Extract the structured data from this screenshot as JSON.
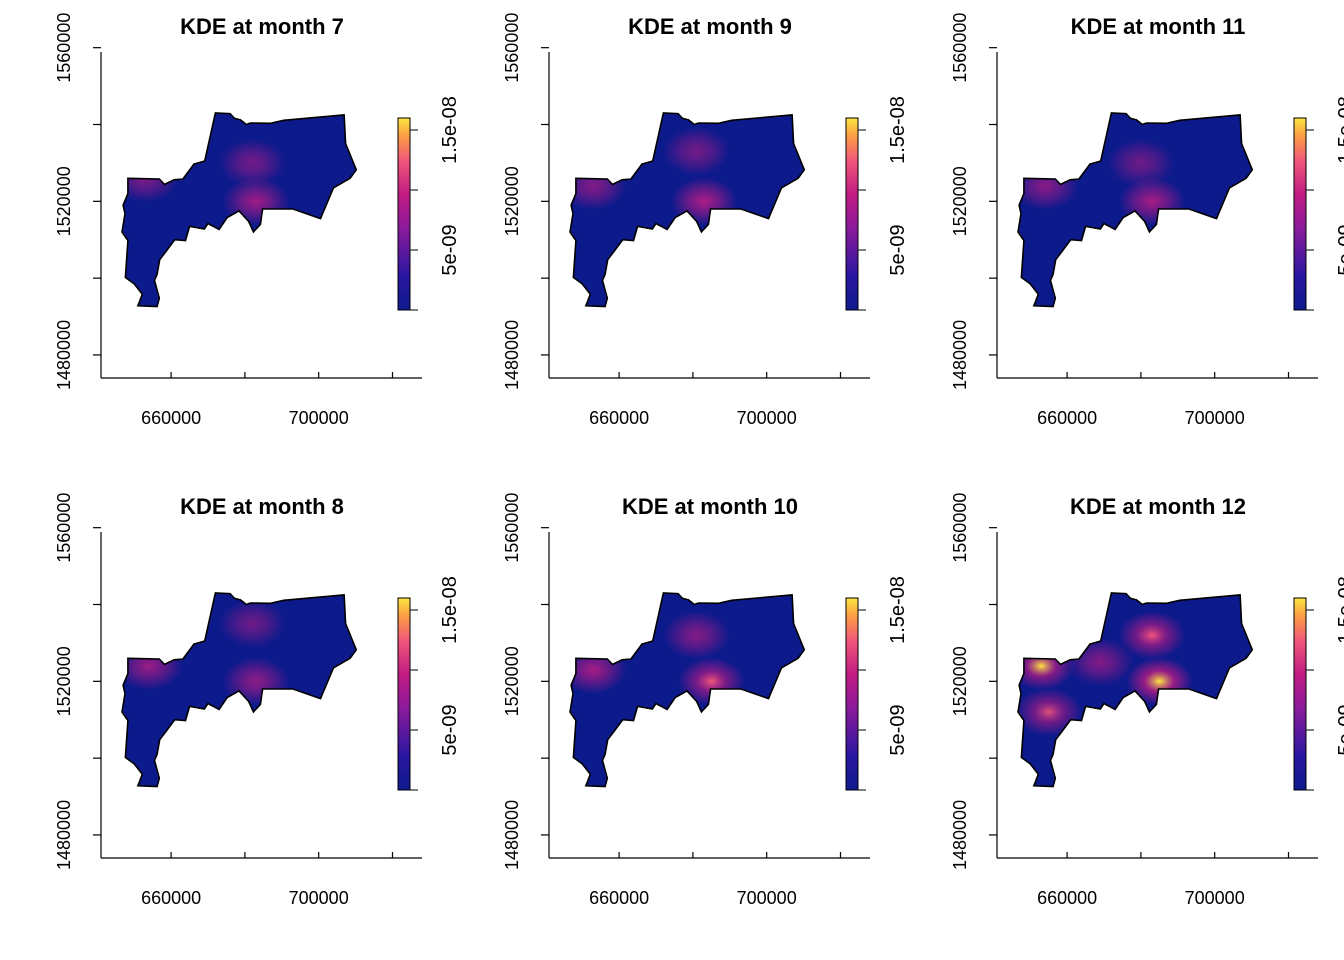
{
  "figure": {
    "description_none": "",
    "x_ticks": [
      "660000",
      "700000"
    ],
    "y_ticks": [
      "1480000",
      "1520000",
      "1560000"
    ],
    "colorbar_ticks": [
      "5e-09",
      "1.5e-08"
    ]
  },
  "colors": {
    "low": "#0d1a8c",
    "mid": "#c21c84",
    "high": "#fde53e",
    "axis": "#000000",
    "background": "#ffffff"
  },
  "chart_data": [
    {
      "type": "heatmap",
      "title": "KDE at month 7",
      "xlabel": "",
      "ylabel": "",
      "xlim": [
        641000,
        728000
      ],
      "ylim": [
        1474000,
        1562000
      ],
      "x_ticks": [
        660000,
        680000,
        700000,
        720000
      ],
      "x_tick_labels": [
        "660000",
        "700000"
      ],
      "y_ticks": [
        1480000,
        1500000,
        1520000,
        1540000,
        1560000
      ],
      "y_tick_labels": [
        "1480000",
        "1520000",
        "1560000"
      ],
      "colorbar": {
        "range": [
          0,
          1.6e-08
        ],
        "ticks": [
          0,
          5e-09,
          1e-08,
          1.5e-08
        ],
        "tick_labels": [
          "5e-09",
          "1.5e-08"
        ]
      },
      "hotspots": [
        {
          "x": 683000,
          "y": 1520000,
          "density": 7.5e-09
        },
        {
          "x": 653000,
          "y": 1526000,
          "density": 4.5e-09
        },
        {
          "x": 682000,
          "y": 1530000,
          "density": 3.5e-09
        }
      ]
    },
    {
      "type": "heatmap",
      "title": "KDE at month 9",
      "xlabel": "",
      "ylabel": "",
      "xlim": [
        641000,
        728000
      ],
      "ylim": [
        1474000,
        1562000
      ],
      "x_ticks": [
        660000,
        680000,
        700000,
        720000
      ],
      "x_tick_labels": [
        "660000",
        "700000"
      ],
      "y_ticks": [
        1480000,
        1500000,
        1520000,
        1540000,
        1560000
      ],
      "y_tick_labels": [
        "1480000",
        "1520000",
        "1560000"
      ],
      "colorbar": {
        "range": [
          0,
          1.6e-08
        ],
        "ticks": [
          0,
          5e-09,
          1e-08,
          1.5e-08
        ],
        "tick_labels": [
          "5e-09",
          "1.5e-08"
        ]
      },
      "hotspots": [
        {
          "x": 683000,
          "y": 1520000,
          "density": 8.5e-09
        },
        {
          "x": 653000,
          "y": 1524000,
          "density": 5e-09
        },
        {
          "x": 681000,
          "y": 1533000,
          "density": 3.5e-09
        }
      ]
    },
    {
      "type": "heatmap",
      "title": "KDE at month 11",
      "xlabel": "",
      "ylabel": "",
      "xlim": [
        641000,
        728000
      ],
      "ylim": [
        1474000,
        1562000
      ],
      "x_ticks": [
        660000,
        680000,
        700000,
        720000
      ],
      "x_tick_labels": [
        "660000",
        "700000"
      ],
      "y_ticks": [
        1480000,
        1500000,
        1520000,
        1540000,
        1560000
      ],
      "y_tick_labels": [
        "1480000",
        "1520000",
        "1560000"
      ],
      "colorbar": {
        "range": [
          0,
          1.6e-08
        ],
        "ticks": [
          0,
          5e-09,
          1e-08,
          1.5e-08
        ],
        "tick_labels": [
          "5e-09",
          "1.5e-08"
        ]
      },
      "hotspots": [
        {
          "x": 683000,
          "y": 1520000,
          "density": 8e-09
        },
        {
          "x": 654000,
          "y": 1524000,
          "density": 5.5e-09
        },
        {
          "x": 680000,
          "y": 1530000,
          "density": 3e-09
        }
      ]
    },
    {
      "type": "heatmap",
      "title": "KDE at month 8",
      "xlabel": "",
      "ylabel": "",
      "xlim": [
        641000,
        728000
      ],
      "ylim": [
        1474000,
        1562000
      ],
      "x_ticks": [
        660000,
        680000,
        700000,
        720000
      ],
      "x_tick_labels": [
        "660000",
        "700000"
      ],
      "y_ticks": [
        1480000,
        1500000,
        1520000,
        1540000,
        1560000
      ],
      "y_tick_labels": [
        "1480000",
        "1520000",
        "1560000"
      ],
      "colorbar": {
        "range": [
          0,
          1.6e-08
        ],
        "ticks": [
          0,
          5e-09,
          1e-08,
          1.5e-08
        ],
        "tick_labels": [
          "5e-09",
          "1.5e-08"
        ]
      },
      "hotspots": [
        {
          "x": 654000,
          "y": 1524000,
          "density": 7e-09
        },
        {
          "x": 683000,
          "y": 1520000,
          "density": 6e-09
        },
        {
          "x": 682000,
          "y": 1535000,
          "density": 3e-09
        }
      ]
    },
    {
      "type": "heatmap",
      "title": "KDE at month 10",
      "xlabel": "",
      "ylabel": "",
      "xlim": [
        641000,
        728000
      ],
      "ylim": [
        1474000,
        1562000
      ],
      "x_ticks": [
        660000,
        680000,
        700000,
        720000
      ],
      "x_tick_labels": [
        "660000",
        "700000"
      ],
      "y_ticks": [
        1480000,
        1500000,
        1520000,
        1540000,
        1560000
      ],
      "y_tick_labels": [
        "1480000",
        "1520000",
        "1560000"
      ],
      "colorbar": {
        "range": [
          0,
          1.6e-08
        ],
        "ticks": [
          0,
          5e-09,
          1e-08,
          1.5e-08
        ],
        "tick_labels": [
          "5e-09",
          "1.5e-08"
        ]
      },
      "hotspots": [
        {
          "x": 685000,
          "y": 1520000,
          "density": 1.05e-08
        },
        {
          "x": 653000,
          "y": 1523000,
          "density": 8e-09
        },
        {
          "x": 681000,
          "y": 1532000,
          "density": 5e-09
        }
      ]
    },
    {
      "type": "heatmap",
      "title": "KDE at month 12",
      "xlabel": "",
      "ylabel": "",
      "xlim": [
        641000,
        728000
      ],
      "ylim": [
        1474000,
        1562000
      ],
      "x_ticks": [
        660000,
        680000,
        700000,
        720000
      ],
      "x_tick_labels": [
        "660000",
        "700000"
      ],
      "y_ticks": [
        1480000,
        1500000,
        1520000,
        1540000,
        1560000
      ],
      "y_tick_labels": [
        "1480000",
        "1520000",
        "1560000"
      ],
      "colorbar": {
        "range": [
          0,
          1.6e-08
        ],
        "ticks": [
          0,
          5e-09,
          1e-08,
          1.5e-08
        ],
        "tick_labels": [
          "5e-09",
          "1.5e-08"
        ]
      },
      "hotspots": [
        {
          "x": 685000,
          "y": 1520000,
          "density": 1.6e-08
        },
        {
          "x": 653000,
          "y": 1524000,
          "density": 1.3e-08
        },
        {
          "x": 683000,
          "y": 1532000,
          "density": 1.05e-08
        },
        {
          "x": 655000,
          "y": 1512000,
          "density": 9e-09
        },
        {
          "x": 669000,
          "y": 1525000,
          "density": 5e-09
        }
      ]
    }
  ]
}
